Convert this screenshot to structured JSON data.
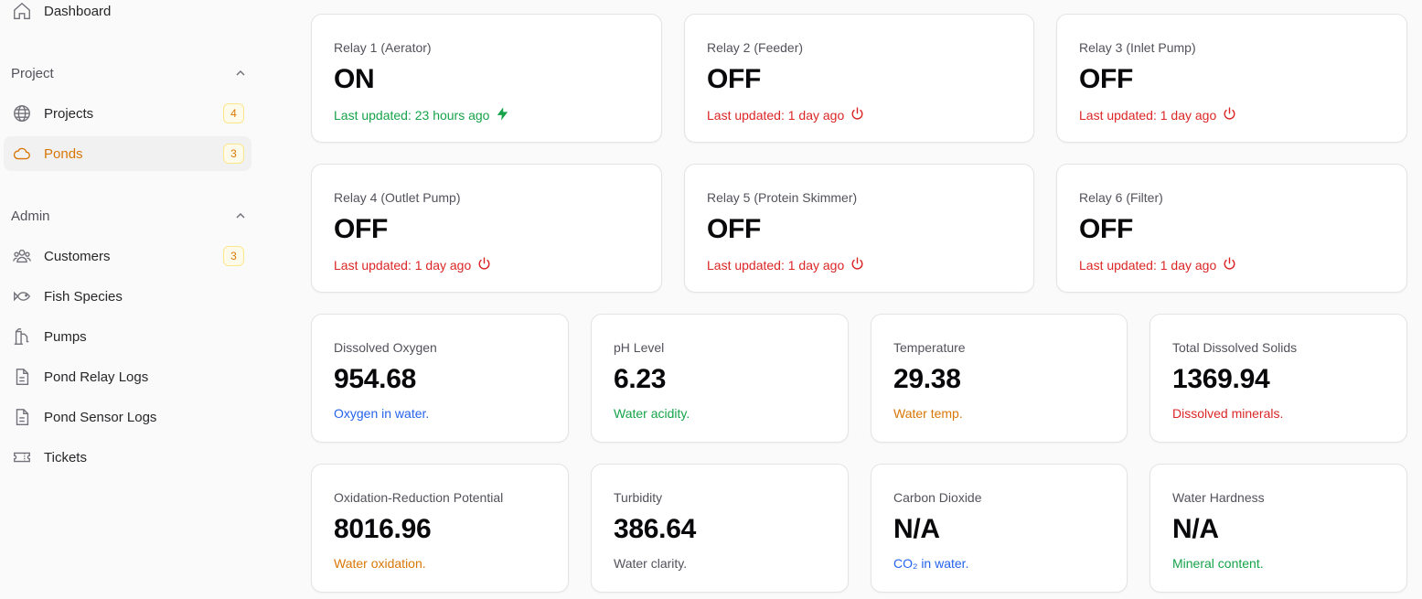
{
  "sidebar": {
    "dashboard": {
      "label": "Dashboard",
      "icon": "home-icon"
    },
    "groups": [
      {
        "label": "Project",
        "items": [
          {
            "label": "Projects",
            "icon": "globe-icon",
            "badge": "4",
            "active": false
          },
          {
            "label": "Ponds",
            "icon": "cloud-icon",
            "badge": "3",
            "active": true
          }
        ]
      },
      {
        "label": "Admin",
        "items": [
          {
            "label": "Customers",
            "icon": "users-icon",
            "badge": "3"
          },
          {
            "label": "Fish Species",
            "icon": "fish-icon"
          },
          {
            "label": "Pumps",
            "icon": "pump-icon"
          },
          {
            "label": "Pond Relay Logs",
            "icon": "document-icon"
          },
          {
            "label": "Pond Sensor Logs",
            "icon": "document-icon"
          },
          {
            "label": "Tickets",
            "icon": "ticket-icon"
          }
        ]
      }
    ]
  },
  "relays": [
    {
      "title": "Relay 1 (Aerator)",
      "state": "ON",
      "updated": "Last updated: 23 hours ago",
      "status_icon": "bolt-icon",
      "color": "#16a34a"
    },
    {
      "title": "Relay 2 (Feeder)",
      "state": "OFF",
      "updated": "Last updated: 1 day ago",
      "status_icon": "power-icon",
      "color": "#dc2626"
    },
    {
      "title": "Relay 3 (Inlet Pump)",
      "state": "OFF",
      "updated": "Last updated: 1 day ago",
      "status_icon": "power-icon",
      "color": "#dc2626"
    },
    {
      "title": "Relay 4 (Outlet Pump)",
      "state": "OFF",
      "updated": "Last updated: 1 day ago",
      "status_icon": "power-icon",
      "color": "#dc2626"
    },
    {
      "title": "Relay 5 (Protein Skimmer)",
      "state": "OFF",
      "updated": "Last updated: 1 day ago",
      "status_icon": "power-icon",
      "color": "#dc2626"
    },
    {
      "title": "Relay 6 (Filter)",
      "state": "OFF",
      "updated": "Last updated: 1 day ago",
      "status_icon": "power-icon",
      "color": "#dc2626"
    }
  ],
  "sensors": [
    {
      "title": "Dissolved Oxygen",
      "value": "954.68",
      "desc": "Oxygen in water.",
      "color": "#2563eb"
    },
    {
      "title": "pH Level",
      "value": "6.23",
      "desc": "Water acidity.",
      "color": "#16a34a"
    },
    {
      "title": "Temperature",
      "value": "29.38",
      "desc": "Water temp.",
      "color": "#d97706"
    },
    {
      "title": "Total Dissolved Solids",
      "value": "1369.94",
      "desc": "Dissolved minerals.",
      "color": "#dc2626"
    },
    {
      "title": "Oxidation-Reduction Potential",
      "value": "8016.96",
      "desc": "Water oxidation.",
      "color": "#d97706"
    },
    {
      "title": "Turbidity",
      "value": "386.64",
      "desc": "Water clarity.",
      "color": "#52525b"
    },
    {
      "title": "Carbon Dioxide",
      "value": "N/A",
      "desc": "CO₂ in water.",
      "color": "#2563eb"
    },
    {
      "title": "Water Hardness",
      "value": "N/A",
      "desc": "Mineral content.",
      "color": "#16a34a"
    }
  ]
}
